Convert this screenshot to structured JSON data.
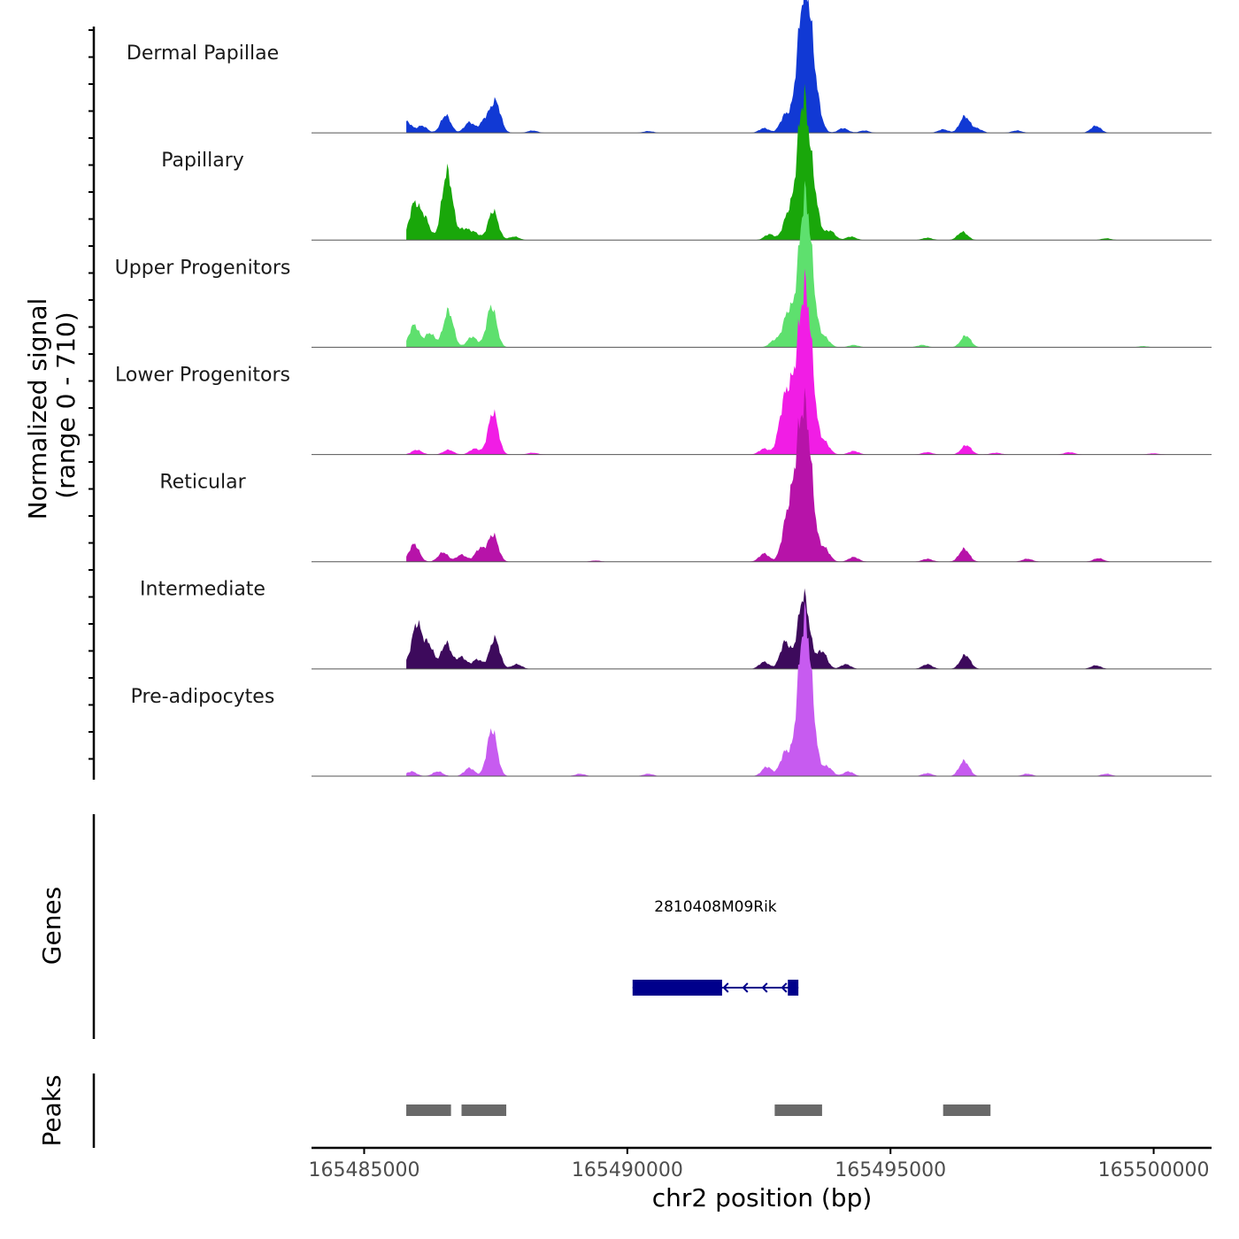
{
  "chart_data": {
    "type": "area",
    "title": "",
    "xlabel": "chr2 position (bp)",
    "ylabel_line1": "Normalized signal",
    "ylabel_line2": "(range 0 - 710)",
    "xlim": [
      165484000,
      165501100
    ],
    "ylim": [
      0,
      710
    ],
    "x_ticks": [
      {
        "value": 165485000,
        "label": "165485000"
      },
      {
        "value": 165490000,
        "label": "165490000"
      },
      {
        "value": 165495000,
        "label": "165495000"
      },
      {
        "value": 165500000,
        "label": "165500000"
      }
    ],
    "tracks": [
      {
        "name": "Dermal Papillae",
        "color": "#1139d4",
        "peaks": [
          [
            165485800,
            100
          ],
          [
            165486100,
            60
          ],
          [
            165486550,
            150
          ],
          [
            165487000,
            90
          ],
          [
            165487300,
            110
          ],
          [
            165487500,
            260
          ],
          [
            165488200,
            20
          ],
          [
            165490400,
            15
          ],
          [
            165492600,
            40
          ],
          [
            165493000,
            150
          ],
          [
            165493250,
            290
          ],
          [
            165493360,
            700
          ],
          [
            165493460,
            560
          ],
          [
            165493620,
            120
          ],
          [
            165494100,
            40
          ],
          [
            165494500,
            20
          ],
          [
            165496000,
            30
          ],
          [
            165496410,
            140
          ],
          [
            165496650,
            35
          ],
          [
            165497400,
            20
          ],
          [
            165498900,
            60
          ]
        ]
      },
      {
        "name": "Papillary",
        "color": "#19a70a",
        "peaks": [
          [
            165485950,
            300
          ],
          [
            165486150,
            180
          ],
          [
            165486550,
            370
          ],
          [
            165486620,
            250
          ],
          [
            165486900,
            90
          ],
          [
            165487100,
            60
          ],
          [
            165487450,
            250
          ],
          [
            165487850,
            30
          ],
          [
            165492700,
            50
          ],
          [
            165493050,
            200
          ],
          [
            165493300,
            600
          ],
          [
            165493380,
            650
          ],
          [
            165493550,
            280
          ],
          [
            165493850,
            80
          ],
          [
            165494250,
            30
          ],
          [
            165495700,
            20
          ],
          [
            165496370,
            70
          ],
          [
            165499100,
            15
          ]
        ]
      },
      {
        "name": "Upper Progenitors",
        "color": "#5ee06e",
        "peaks": [
          [
            165485950,
            190
          ],
          [
            165486250,
            120
          ],
          [
            165486600,
            310
          ],
          [
            165487050,
            90
          ],
          [
            165487420,
            350
          ],
          [
            165492800,
            60
          ],
          [
            165493050,
            280
          ],
          [
            165493330,
            820
          ],
          [
            165493450,
            650
          ],
          [
            165493750,
            80
          ],
          [
            165494300,
            20
          ],
          [
            165495600,
            20
          ],
          [
            165496430,
            100
          ],
          [
            165499800,
            10
          ]
        ]
      },
      {
        "name": "Lower Progenitors",
        "color": "#f11de5",
        "peaks": [
          [
            165486000,
            40
          ],
          [
            165486600,
            40
          ],
          [
            165487100,
            50
          ],
          [
            165487450,
            360
          ],
          [
            165488200,
            15
          ],
          [
            165492600,
            50
          ],
          [
            165492950,
            270
          ],
          [
            165493100,
            420
          ],
          [
            165493320,
            880
          ],
          [
            165493450,
            780
          ],
          [
            165493750,
            100
          ],
          [
            165494300,
            30
          ],
          [
            165495700,
            20
          ],
          [
            165496440,
            80
          ],
          [
            165497000,
            15
          ],
          [
            165498400,
            20
          ],
          [
            165500000,
            10
          ]
        ]
      },
      {
        "name": "Reticular",
        "color": "#b713a9",
        "peaks": [
          [
            165485950,
            150
          ],
          [
            165486500,
            80
          ],
          [
            165486850,
            60
          ],
          [
            165487200,
            110
          ],
          [
            165487450,
            230
          ],
          [
            165489400,
            10
          ],
          [
            165492600,
            70
          ],
          [
            165493020,
            280
          ],
          [
            165493200,
            470
          ],
          [
            165493340,
            760
          ],
          [
            165493450,
            580
          ],
          [
            165493750,
            110
          ],
          [
            165494300,
            40
          ],
          [
            165495700,
            25
          ],
          [
            165496400,
            110
          ],
          [
            165497600,
            25
          ],
          [
            165498950,
            30
          ]
        ]
      },
      {
        "name": "Intermediate",
        "color": "#3d0a5c",
        "peaks": [
          [
            165485750,
            40
          ],
          [
            165486000,
            380
          ],
          [
            165486230,
            200
          ],
          [
            165486560,
            220
          ],
          [
            165486850,
            100
          ],
          [
            165487150,
            80
          ],
          [
            165487480,
            260
          ],
          [
            165487900,
            40
          ],
          [
            165492600,
            60
          ],
          [
            165493000,
            230
          ],
          [
            165493350,
            620
          ],
          [
            165493700,
            150
          ],
          [
            165494150,
            40
          ],
          [
            165495700,
            40
          ],
          [
            165496420,
            120
          ],
          [
            165498900,
            30
          ]
        ]
      },
      {
        "name": "Pre-adipocytes",
        "color": "#c75bf0",
        "peaks": [
          [
            165485900,
            40
          ],
          [
            165486400,
            40
          ],
          [
            165487000,
            70
          ],
          [
            165487430,
            400
          ],
          [
            165489100,
            20
          ],
          [
            165490400,
            20
          ],
          [
            165492650,
            80
          ],
          [
            165493000,
            200
          ],
          [
            165493320,
            880
          ],
          [
            165493450,
            700
          ],
          [
            165493800,
            80
          ],
          [
            165494200,
            40
          ],
          [
            165495700,
            25
          ],
          [
            165496400,
            130
          ],
          [
            165497600,
            20
          ],
          [
            165499100,
            20
          ]
        ]
      }
    ],
    "gene": {
      "name": "2810408M09Rik",
      "strand": "-",
      "start": 165490100,
      "end": 165493250,
      "color": "#00008b",
      "exons": [
        [
          165490100,
          165491800
        ],
        [
          165493050,
          165493250
        ]
      ]
    },
    "peaks_track": {
      "label": "Peaks",
      "color": "#696969",
      "regions": [
        [
          165485800,
          165486650
        ],
        [
          165486850,
          165487700
        ],
        [
          165492800,
          165493700
        ],
        [
          165496000,
          165496900
        ]
      ]
    },
    "genes_track_label": "Genes"
  }
}
